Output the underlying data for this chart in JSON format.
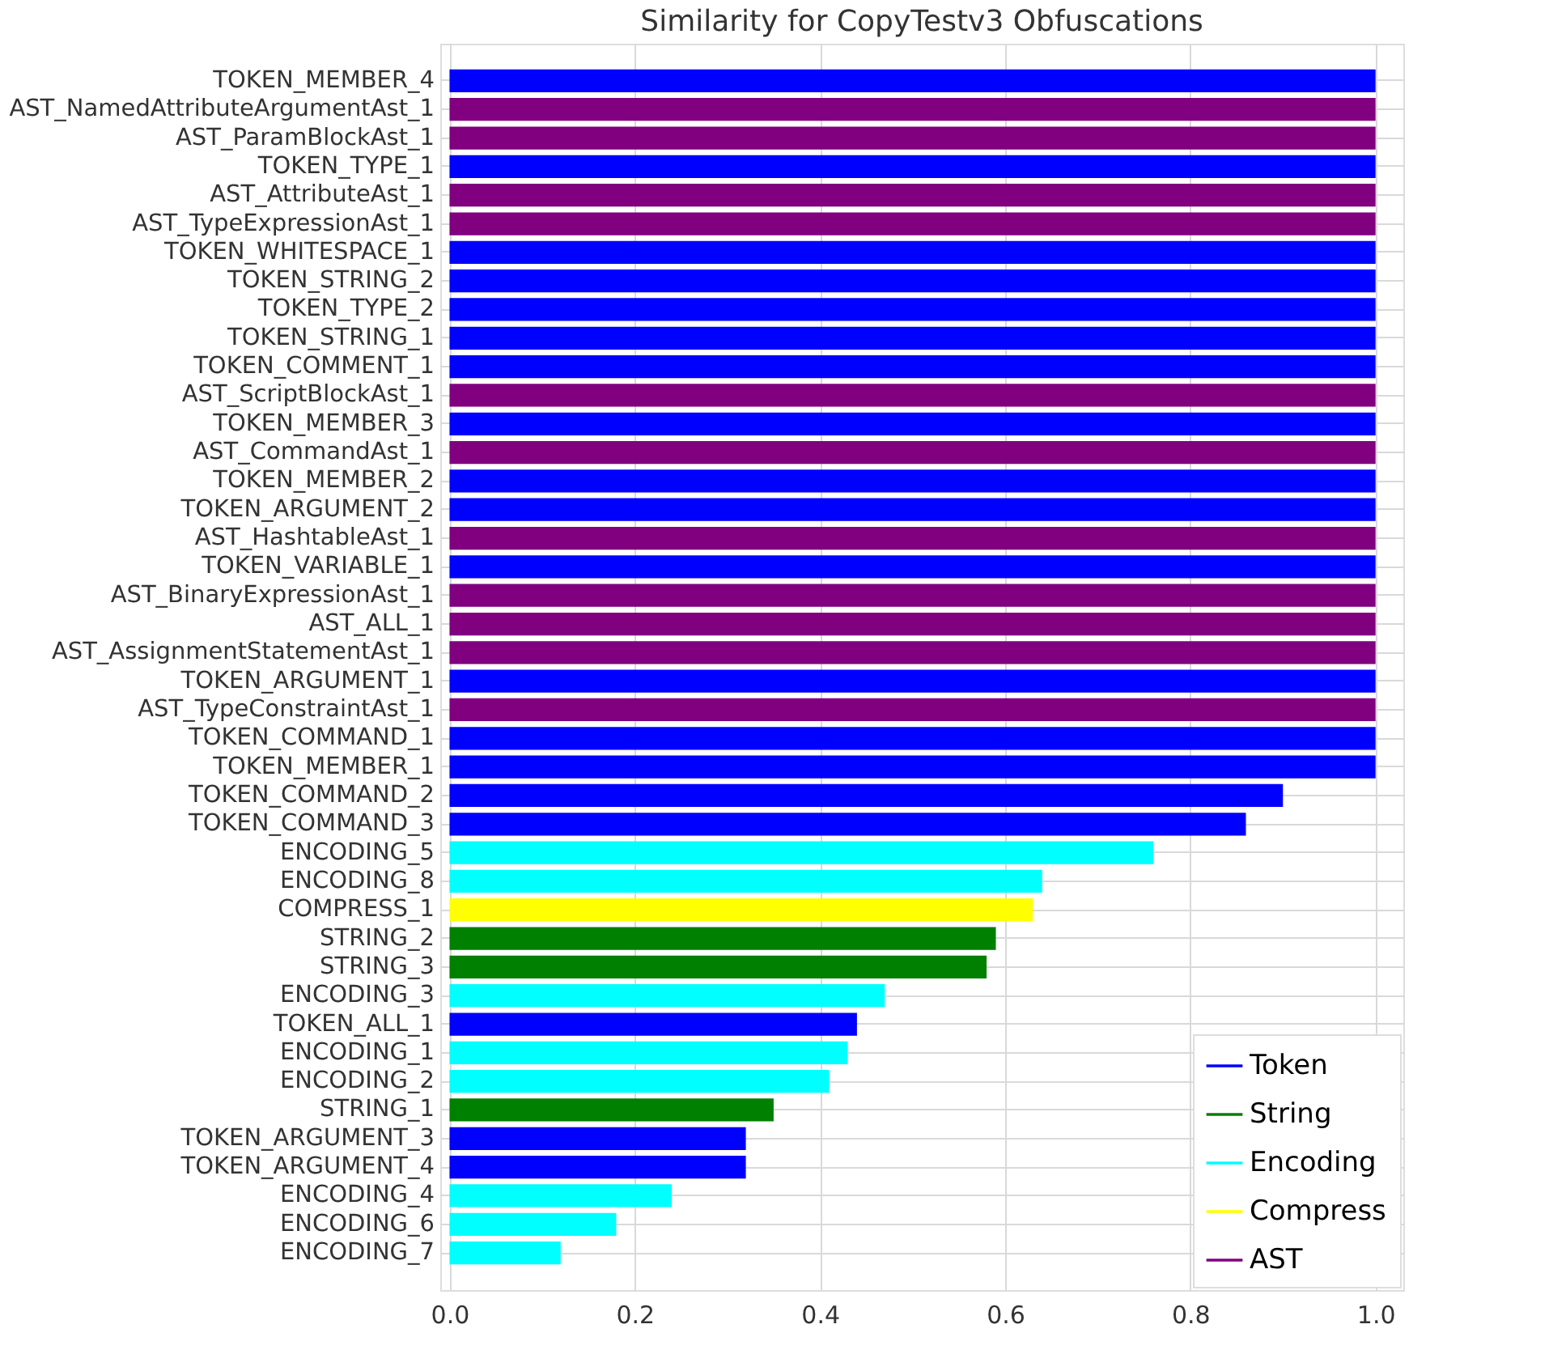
{
  "chart_data": {
    "type": "bar",
    "orientation": "horizontal",
    "title": "Similarity for CopyTestv3 Obfuscations",
    "categories": [
      "TOKEN_MEMBER_4",
      "AST_NamedAttributeArgumentAst_1",
      "AST_ParamBlockAst_1",
      "TOKEN_TYPE_1",
      "AST_AttributeAst_1",
      "AST_TypeExpressionAst_1",
      "TOKEN_WHITESPACE_1",
      "TOKEN_STRING_2",
      "TOKEN_TYPE_2",
      "TOKEN_STRING_1",
      "TOKEN_COMMENT_1",
      "AST_ScriptBlockAst_1",
      "TOKEN_MEMBER_3",
      "AST_CommandAst_1",
      "TOKEN_MEMBER_2",
      "TOKEN_ARGUMENT_2",
      "AST_HashtableAst_1",
      "TOKEN_VARIABLE_1",
      "AST_BinaryExpressionAst_1",
      "AST_ALL_1",
      "AST_AssignmentStatementAst_1",
      "TOKEN_ARGUMENT_1",
      "AST_TypeConstraintAst_1",
      "TOKEN_COMMAND_1",
      "TOKEN_MEMBER_1",
      "TOKEN_COMMAND_2",
      "TOKEN_COMMAND_3",
      "ENCODING_5",
      "ENCODING_8",
      "COMPRESS_1",
      "STRING_2",
      "STRING_3",
      "ENCODING_3",
      "TOKEN_ALL_1",
      "ENCODING_1",
      "ENCODING_2",
      "STRING_1",
      "TOKEN_ARGUMENT_3",
      "TOKEN_ARGUMENT_4",
      "ENCODING_4",
      "ENCODING_6",
      "ENCODING_7"
    ],
    "series": [
      {
        "name": "Token",
        "color": "#0000ff",
        "values": [
          1,
          null,
          null,
          1,
          null,
          null,
          1,
          1,
          1,
          1,
          1,
          null,
          1,
          null,
          1,
          1,
          null,
          1,
          null,
          null,
          null,
          1,
          null,
          1,
          1,
          0.9,
          0.86,
          null,
          null,
          null,
          null,
          null,
          null,
          0.44,
          null,
          null,
          null,
          0.32,
          0.32,
          null,
          null,
          null
        ]
      },
      {
        "name": "String",
        "color": "#008000",
        "values": [
          null,
          null,
          null,
          null,
          null,
          null,
          null,
          null,
          null,
          null,
          null,
          null,
          null,
          null,
          null,
          null,
          null,
          null,
          null,
          null,
          null,
          null,
          null,
          null,
          null,
          null,
          null,
          null,
          null,
          null,
          0.59,
          0.58,
          null,
          null,
          null,
          null,
          0.35,
          null,
          null,
          null,
          null,
          null
        ]
      },
      {
        "name": "Encoding",
        "color": "#00ffff",
        "values": [
          null,
          null,
          null,
          null,
          null,
          null,
          null,
          null,
          null,
          null,
          null,
          null,
          null,
          null,
          null,
          null,
          null,
          null,
          null,
          null,
          null,
          null,
          null,
          null,
          null,
          null,
          null,
          0.76,
          0.64,
          null,
          null,
          null,
          0.47,
          null,
          0.43,
          0.41,
          null,
          null,
          null,
          0.24,
          0.18,
          0.12
        ]
      },
      {
        "name": "Compress",
        "color": "#ffff00",
        "values": [
          null,
          null,
          null,
          null,
          null,
          null,
          null,
          null,
          null,
          null,
          null,
          null,
          null,
          null,
          null,
          null,
          null,
          null,
          null,
          null,
          null,
          null,
          null,
          null,
          null,
          null,
          null,
          null,
          null,
          0.63,
          null,
          null,
          null,
          null,
          null,
          null,
          null,
          null,
          null,
          null,
          null,
          null
        ]
      },
      {
        "name": "AST",
        "color": "#800080",
        "values": [
          null,
          1,
          1,
          null,
          1,
          1,
          null,
          null,
          null,
          null,
          null,
          1,
          null,
          1,
          null,
          null,
          1,
          null,
          1,
          1,
          1,
          null,
          1,
          null,
          null,
          null,
          null,
          null,
          null,
          null,
          null,
          null,
          null,
          null,
          null,
          null,
          null,
          null,
          null,
          null,
          null,
          null
        ]
      }
    ],
    "xlim": [
      -0.01,
      1.03
    ],
    "xticks": [
      {
        "value": 0,
        "label": "0.0"
      },
      {
        "value": 0.2,
        "label": "0.2"
      },
      {
        "value": 0.4,
        "label": "0.4"
      },
      {
        "value": 0.6,
        "label": "0.6"
      },
      {
        "value": 0.8,
        "label": "0.8"
      },
      {
        "value": 1,
        "label": "1.0"
      }
    ],
    "grid": true,
    "legend": "bottom right"
  }
}
